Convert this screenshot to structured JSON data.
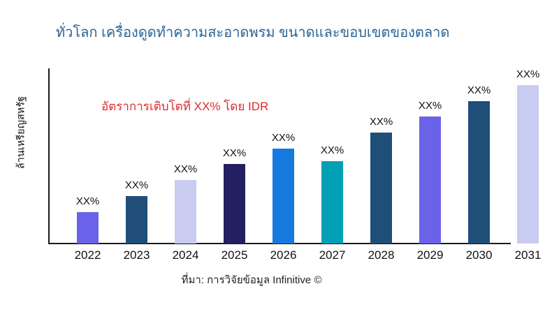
{
  "header": {
    "title": "ทั่วโลก เครื่องดูดทำความสะอาดพรม ขนาดและขอบเขตของตลาด"
  },
  "colors": {
    "title_text": "#2B6497",
    "annotation_text": "#E02B2B",
    "axis": "#1a1a1a"
  },
  "chart_data": {
    "type": "bar",
    "title": "ทั่วโลก เครื่องดูดทำความสะอาดพรม ขนาดและขอบเขตของตลาด",
    "xlabel": "",
    "ylabel": "ล้านเหรียญสหรัฐ",
    "annotation": "อัตราการเติบโตที่ XX% โดย IDR",
    "source": "ที่มา: การวิจัยข้อมูล Infinitive ©",
    "categories": [
      "2022",
      "2023",
      "2024",
      "2025",
      "2026",
      "2027",
      "2028",
      "2029",
      "2030",
      "2031"
    ],
    "values": [
      20,
      30,
      40,
      50,
      60,
      52,
      70,
      80,
      90,
      100
    ],
    "value_labels": [
      "XX%",
      "XX%",
      "XX%",
      "XX%",
      "XX%",
      "XX%",
      "XX%",
      "XX%",
      "XX%",
      "XX%"
    ],
    "bar_colors": [
      "#6A62E8",
      "#1F4E79",
      "#C9CCF0",
      "#241F60",
      "#1779E0",
      "#02A0B5",
      "#1F4E79",
      "#6A62E8",
      "#1F4E79",
      "#C9CCF0"
    ],
    "ylim": [
      0,
      105
    ],
    "y_axis_ticks_visible": false,
    "grid": false,
    "legend": null
  }
}
